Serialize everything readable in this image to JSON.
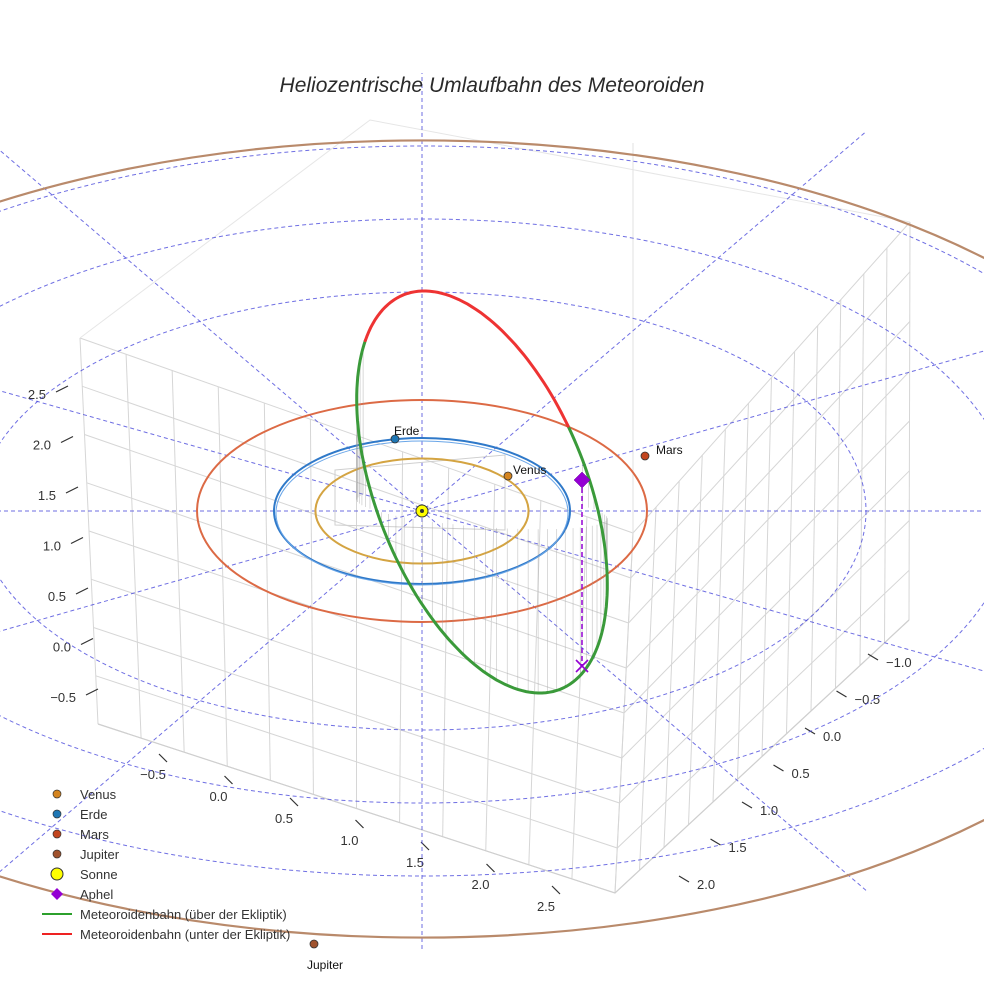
{
  "chart_data": {
    "type": "scatter3d",
    "title": "Heliozentrische Umlaufbahn des Meteoroiden",
    "axes": {
      "x": {
        "ticks": [
          "−1.0",
          "−0.5",
          "0.0",
          "0.5",
          "1.0",
          "1.5",
          "2.0"
        ]
      },
      "y": {
        "ticks": [
          "−0.5",
          "0.0",
          "0.5",
          "1.0",
          "1.5",
          "2.0",
          "2.5"
        ]
      },
      "z": {
        "ticks": [
          "−0.5",
          "0.0",
          "0.5",
          "1.0",
          "1.5",
          "2.0",
          "2.5"
        ]
      }
    },
    "planet_labels": {
      "venus": "Venus",
      "earth": "Erde",
      "mars": "Mars",
      "jupiter": "Jupiter"
    },
    "orbits": [
      {
        "name": "Venus",
        "radius_au": 0.72,
        "color": "#d4a442"
      },
      {
        "name": "Erde",
        "radius_au": 1.0,
        "color": "#2f79c9"
      },
      {
        "name": "Mars",
        "radius_au": 1.52,
        "color": "#dc6a45"
      },
      {
        "name": "Jupiter",
        "radius_au": 5.2,
        "color": "#b98a6b"
      }
    ],
    "legend": [
      {
        "label": "Venus",
        "symbol": "dot",
        "color": "#d4841f"
      },
      {
        "label": "Erde",
        "symbol": "dot",
        "color": "#1f77b4"
      },
      {
        "label": "Mars",
        "symbol": "dot",
        "color": "#c2451e"
      },
      {
        "label": "Jupiter",
        "symbol": "dot",
        "color": "#a0522d"
      },
      {
        "label": "Sonne",
        "symbol": "big-dot",
        "color": "#ffff00"
      },
      {
        "label": "Aphel",
        "symbol": "diamond",
        "color": "#9400d3"
      },
      {
        "label": "Meteoroidenbahn (über der Ekliptik)",
        "symbol": "line",
        "color": "#2ca02c"
      },
      {
        "label": "Meteoroidenbahn (unter der Ekliptik)",
        "symbol": "line",
        "color": "#ee2222"
      }
    ],
    "meteoroid_orbit": {
      "above_color": "#3a9a3a",
      "below_color": "#ee3333"
    }
  }
}
